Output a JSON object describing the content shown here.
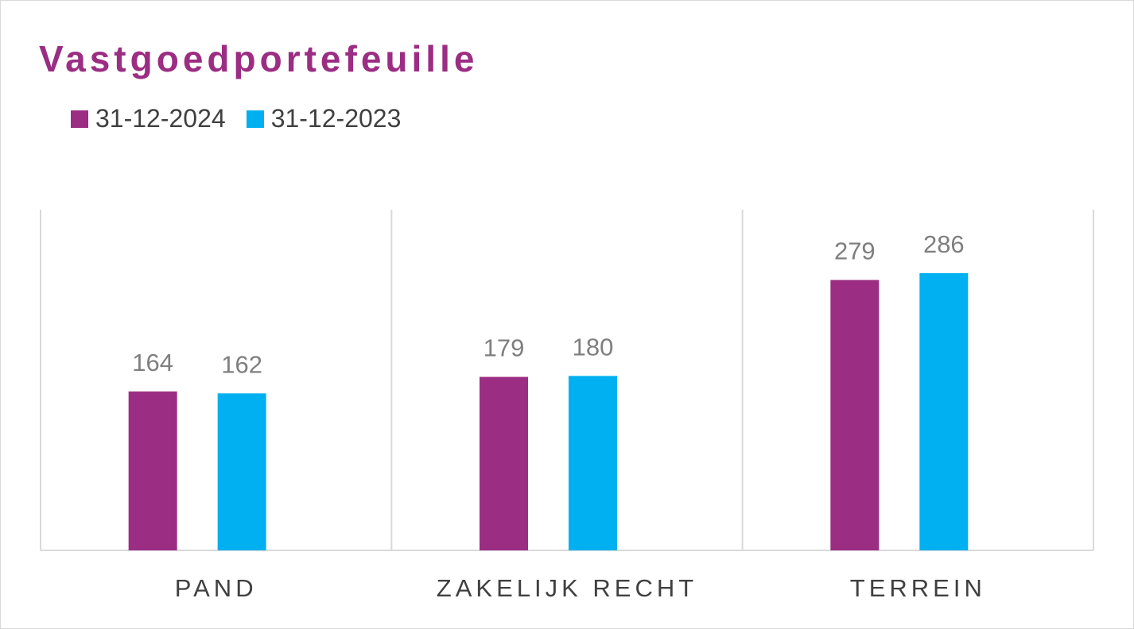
{
  "chart_data": {
    "type": "bar",
    "title": "Vastgoedportefeuille",
    "categories": [
      "PAND",
      "ZAKELIJK RECHT",
      "TERREIN"
    ],
    "series": [
      {
        "name": "31-12-2024",
        "values": [
          164,
          179,
          279
        ],
        "color": "#9b2d83"
      },
      {
        "name": "31-12-2023",
        "values": [
          162,
          180,
          286
        ],
        "color": "#00b0f0"
      }
    ],
    "xlabel": "",
    "ylabel": "",
    "ylim": [
      0,
      350
    ],
    "grid": "vertical category separators",
    "legend_position": "top-left",
    "data_labels": true,
    "colors": {
      "title": "#9b2d83",
      "text": "#404040",
      "data_label": "#7f7f7f",
      "gridline": "#d9d9d9"
    }
  }
}
